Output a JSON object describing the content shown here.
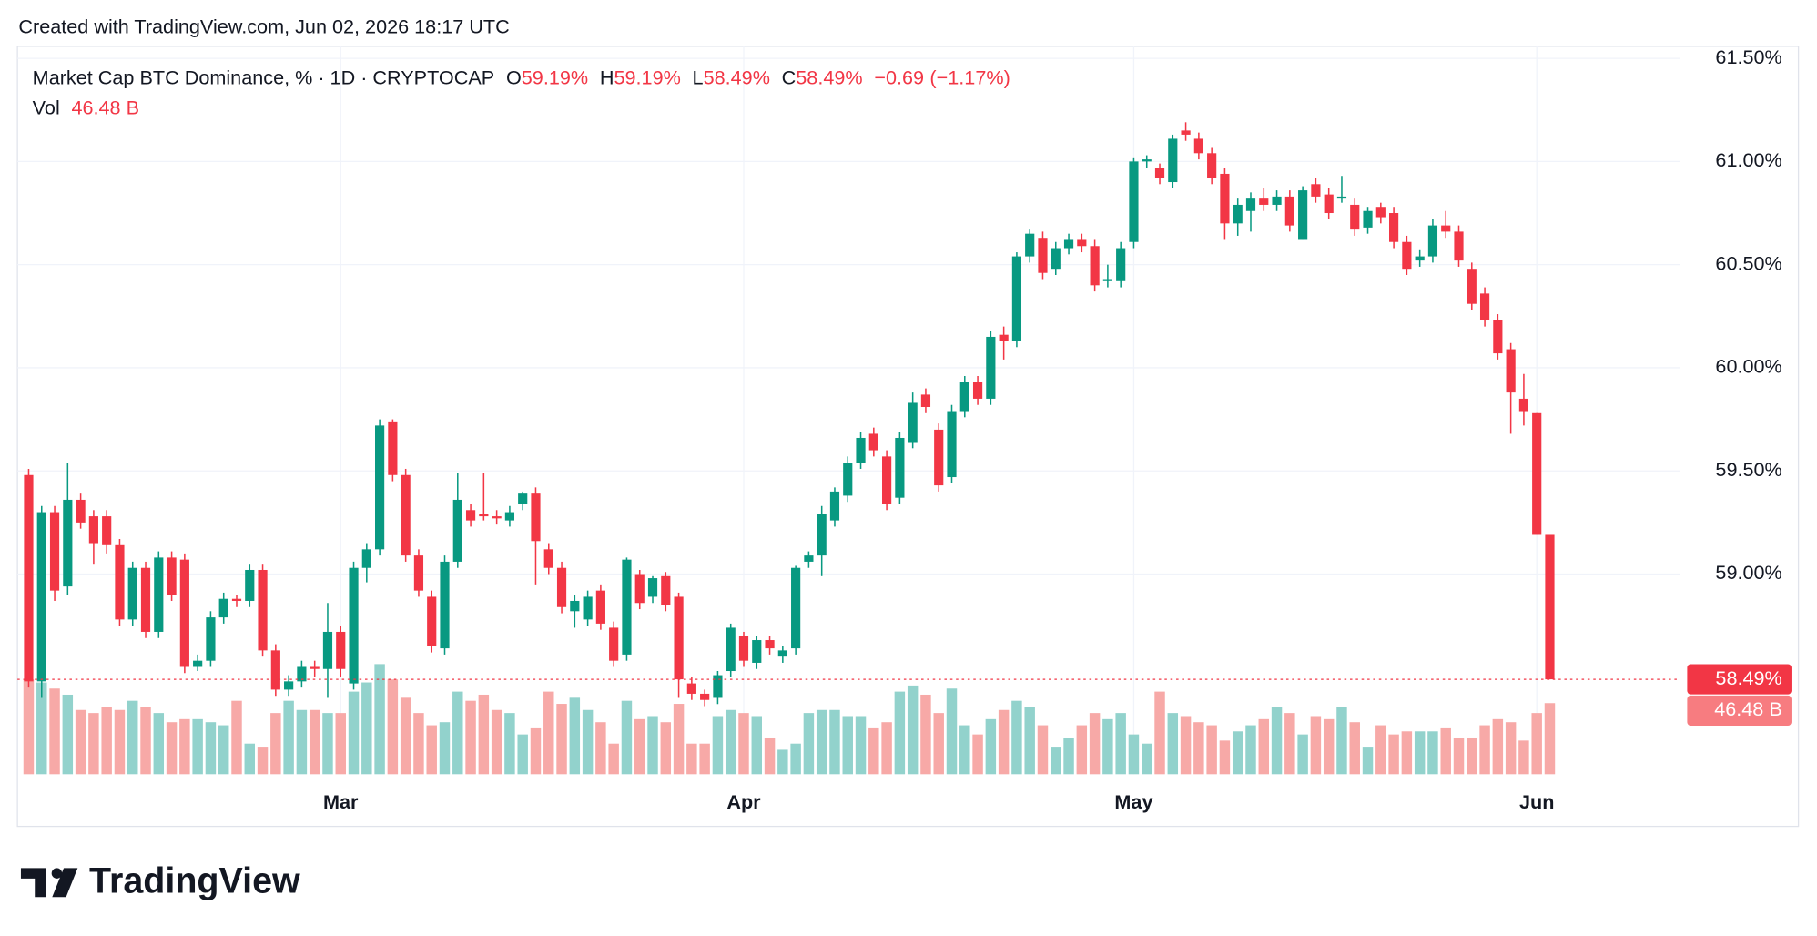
{
  "header": "Created with TradingView.com, Jun 02, 2026 18:17 UTC",
  "brand": "TradingView",
  "chart_data": {
    "type": "candlestick",
    "title": "Market Cap BTC Dominance, % · 1D · CRYPTOCAP",
    "ohlc_legend": [
      {
        "key": "O",
        "value": 59.19,
        "label": "59.19%"
      },
      {
        "key": "H",
        "value": 59.19,
        "label": "59.19%"
      },
      {
        "key": "L",
        "value": 58.49,
        "label": "58.49%"
      },
      {
        "key": "C",
        "value": 58.49,
        "label": "58.49%"
      }
    ],
    "change": {
      "value": -0.69,
      "label": "−0.69"
    },
    "change_percent": {
      "value": -1.17,
      "label": "(−1.17%)"
    },
    "volume_legend": {
      "key": "Vol",
      "value": 46.48,
      "label": "46.48 B"
    },
    "last_price": {
      "value": 58.49,
      "label": "58.49%"
    },
    "categories": [
      null,
      null,
      null,
      null,
      null,
      null,
      null,
      null,
      null,
      null,
      null,
      null,
      null,
      null,
      null,
      null,
      null,
      null,
      null,
      null,
      null,
      null,
      null,
      null,
      "Mar",
      null,
      null,
      null,
      null,
      null,
      null,
      null,
      null,
      null,
      null,
      null,
      null,
      null,
      null,
      null,
      null,
      null,
      null,
      null,
      null,
      null,
      null,
      null,
      null,
      null,
      null,
      null,
      null,
      null,
      null,
      "Apr",
      null,
      null,
      null,
      null,
      null,
      null,
      null,
      null,
      null,
      null,
      null,
      null,
      null,
      null,
      null,
      null,
      null,
      null,
      null,
      null,
      null,
      null,
      null,
      null,
      null,
      null,
      null,
      null,
      null,
      "May",
      null,
      null,
      null,
      null,
      null,
      null,
      null,
      null,
      null,
      null,
      null,
      null,
      null,
      null,
      null,
      null,
      null,
      null,
      null,
      null,
      null,
      null,
      null,
      null,
      null,
      null,
      null,
      null,
      null,
      null,
      "Jun",
      null
    ],
    "open": [
      59.48,
      58.48,
      59.3,
      58.94,
      59.36,
      59.28,
      59.28,
      59.14,
      58.78,
      59.03,
      58.72,
      59.08,
      59.07,
      58.55,
      58.58,
      58.79,
      58.88,
      58.87,
      59.02,
      58.63,
      58.44,
      58.48,
      58.55,
      58.54,
      58.72,
      58.47,
      59.03,
      59.12,
      59.74,
      59.48,
      59.09,
      58.89,
      58.64,
      59.06,
      59.31,
      59.29,
      59.28,
      59.26,
      59.34,
      59.39,
      59.12,
      59.03,
      58.82,
      58.78,
      58.92,
      58.74,
      58.61,
      59.0,
      58.89,
      58.99,
      58.89,
      58.47,
      58.42,
      58.4,
      58.53,
      58.7,
      58.57,
      58.68,
      58.6,
      58.64,
      59.06,
      59.09,
      59.26,
      59.38,
      59.54,
      59.68,
      59.57,
      59.37,
      59.64,
      59.87,
      59.7,
      59.47,
      59.79,
      59.93,
      59.85,
      60.16,
      60.13,
      60.54,
      60.63,
      60.48,
      60.58,
      60.62,
      60.59,
      60.42,
      60.42,
      60.61,
      61.0,
      60.97,
      60.9,
      61.15,
      61.11,
      61.04,
      60.94,
      60.7,
      60.76,
      60.82,
      60.79,
      60.83,
      60.62,
      60.89,
      60.84,
      60.82,
      60.79,
      60.68,
      60.78,
      60.75,
      60.61,
      60.52,
      60.54,
      60.69,
      60.66,
      60.48,
      60.36,
      60.23,
      60.09,
      59.85,
      59.78,
      59.19
    ],
    "high": [
      59.51,
      59.33,
      59.33,
      59.54,
      59.39,
      59.31,
      59.31,
      59.17,
      59.06,
      59.06,
      59.11,
      59.11,
      59.1,
      58.61,
      58.82,
      58.91,
      58.9,
      59.05,
      59.05,
      58.66,
      58.51,
      58.58,
      58.58,
      58.86,
      58.75,
      59.06,
      59.15,
      59.75,
      59.75,
      59.51,
      59.12,
      58.92,
      59.09,
      59.49,
      59.34,
      59.49,
      59.31,
      59.33,
      59.4,
      59.42,
      59.15,
      59.06,
      58.9,
      58.92,
      58.95,
      58.77,
      59.08,
      59.02,
      58.99,
      59.01,
      58.91,
      58.5,
      58.44,
      58.53,
      58.76,
      58.72,
      58.7,
      58.7,
      58.65,
      59.04,
      59.11,
      59.33,
      59.42,
      59.57,
      59.69,
      59.71,
      59.6,
      59.69,
      59.88,
      59.9,
      59.73,
      59.82,
      59.96,
      59.96,
      60.18,
      60.2,
      60.56,
      60.67,
      60.66,
      60.61,
      60.65,
      60.65,
      60.62,
      60.5,
      60.61,
      61.02,
      61.03,
      60.99,
      61.13,
      61.19,
      61.14,
      61.07,
      60.97,
      60.82,
      60.85,
      60.87,
      60.86,
      60.86,
      60.88,
      60.92,
      60.87,
      60.93,
      60.82,
      60.78,
      60.8,
      60.78,
      60.64,
      60.57,
      60.72,
      60.76,
      60.69,
      60.51,
      60.39,
      60.26,
      60.12,
      59.97,
      59.78,
      59.19
    ],
    "low": [
      58.45,
      58.4,
      58.87,
      58.9,
      59.22,
      59.05,
      59.1,
      58.75,
      58.75,
      58.69,
      58.69,
      58.87,
      58.52,
      58.53,
      58.55,
      58.76,
      58.84,
      58.84,
      58.6,
      58.41,
      58.41,
      58.45,
      58.5,
      58.4,
      58.5,
      58.44,
      58.96,
      59.09,
      59.45,
      59.06,
      58.89,
      58.62,
      58.61,
      59.03,
      59.23,
      59.26,
      59.24,
      59.23,
      59.31,
      58.95,
      59.0,
      58.81,
      58.74,
      58.75,
      58.73,
      58.55,
      58.58,
      58.83,
      58.86,
      58.82,
      58.4,
      58.39,
      58.36,
      58.37,
      58.5,
      58.55,
      58.54,
      58.61,
      58.57,
      58.61,
      59.03,
      58.99,
      59.23,
      59.35,
      59.51,
      59.57,
      59.31,
      59.34,
      59.61,
      59.78,
      59.4,
      59.44,
      59.76,
      59.82,
      59.82,
      60.04,
      60.1,
      60.51,
      60.43,
      60.45,
      60.55,
      60.56,
      60.37,
      60.39,
      60.39,
      60.58,
      60.97,
      60.89,
      60.87,
      61.1,
      61.01,
      60.89,
      60.62,
      60.64,
      60.66,
      60.76,
      60.76,
      60.66,
      60.62,
      60.8,
      60.72,
      60.8,
      60.64,
      60.65,
      60.7,
      60.58,
      60.45,
      60.49,
      60.51,
      60.63,
      60.49,
      60.28,
      60.2,
      60.04,
      59.68,
      59.72,
      59.19,
      58.49
    ],
    "close": [
      58.48,
      59.3,
      58.92,
      59.36,
      59.25,
      59.15,
      59.14,
      58.78,
      59.03,
      58.72,
      59.08,
      58.9,
      58.55,
      58.58,
      58.79,
      58.88,
      58.87,
      59.02,
      58.63,
      58.44,
      58.48,
      58.55,
      58.54,
      58.72,
      58.54,
      59.03,
      59.12,
      59.72,
      59.48,
      59.09,
      58.92,
      58.65,
      59.06,
      59.36,
      59.26,
      59.28,
      59.27,
      59.3,
      59.39,
      59.16,
      59.03,
      58.84,
      58.87,
      58.89,
      58.76,
      58.58,
      59.07,
      58.86,
      58.98,
      58.85,
      58.49,
      58.42,
      58.39,
      58.51,
      58.74,
      58.58,
      58.68,
      58.64,
      58.63,
      59.03,
      59.09,
      59.29,
      59.4,
      59.54,
      59.66,
      59.6,
      59.34,
      59.66,
      59.83,
      59.81,
      59.43,
      59.79,
      59.93,
      59.85,
      60.15,
      60.13,
      60.54,
      60.65,
      60.46,
      60.58,
      60.62,
      60.59,
      60.4,
      60.43,
      60.58,
      61.0,
      61.01,
      60.92,
      61.11,
      61.13,
      61.04,
      60.92,
      60.7,
      60.79,
      60.82,
      60.79,
      60.83,
      60.69,
      60.86,
      60.83,
      60.75,
      60.83,
      60.67,
      60.76,
      60.73,
      60.61,
      60.48,
      60.54,
      60.69,
      60.66,
      60.52,
      60.31,
      60.23,
      60.07,
      59.88,
      59.79,
      59.19,
      58.49
    ],
    "volume": [
      62,
      60,
      56,
      52,
      42,
      40,
      44,
      42,
      48,
      44,
      40,
      34,
      36,
      36,
      34,
      32,
      48,
      20,
      18,
      40,
      48,
      42,
      42,
      40,
      40,
      54,
      60,
      72,
      62,
      50,
      40,
      32,
      34,
      54,
      48,
      52,
      42,
      40,
      26,
      30,
      54,
      46,
      50,
      42,
      34,
      20,
      48,
      36,
      38,
      34,
      46,
      20,
      20,
      38,
      42,
      40,
      38,
      24,
      16,
      20,
      40,
      42,
      42,
      38,
      38,
      30,
      34,
      54,
      58,
      52,
      40,
      56,
      32,
      26,
      36,
      42,
      48,
      44,
      32,
      18,
      24,
      32,
      40,
      36,
      40,
      26,
      20,
      54,
      40,
      38,
      34,
      32,
      22,
      28,
      32,
      36,
      44,
      40,
      26,
      38,
      36,
      44,
      34,
      18,
      32,
      26,
      28,
      28,
      28,
      30,
      24,
      24,
      32,
      36,
      34,
      22,
      40,
      46.48
    ],
    "up_color": "#089981",
    "down_color": "#f23645",
    "volume_up_color": "#92d2cc",
    "volume_down_color": "#f7a9a7",
    "ylim": [
      58.03,
      61.53
    ],
    "yticks": [
      {
        "value": 59,
        "label": "59.00%"
      },
      {
        "value": 59.5,
        "label": "59.50%"
      },
      {
        "value": 60,
        "label": "60.00%"
      },
      {
        "value": 60.5,
        "label": "60.50%"
      },
      {
        "value": 61,
        "label": "61.00%"
      },
      {
        "value": 61.5,
        "label": "61.50%"
      }
    ],
    "grid": true
  }
}
